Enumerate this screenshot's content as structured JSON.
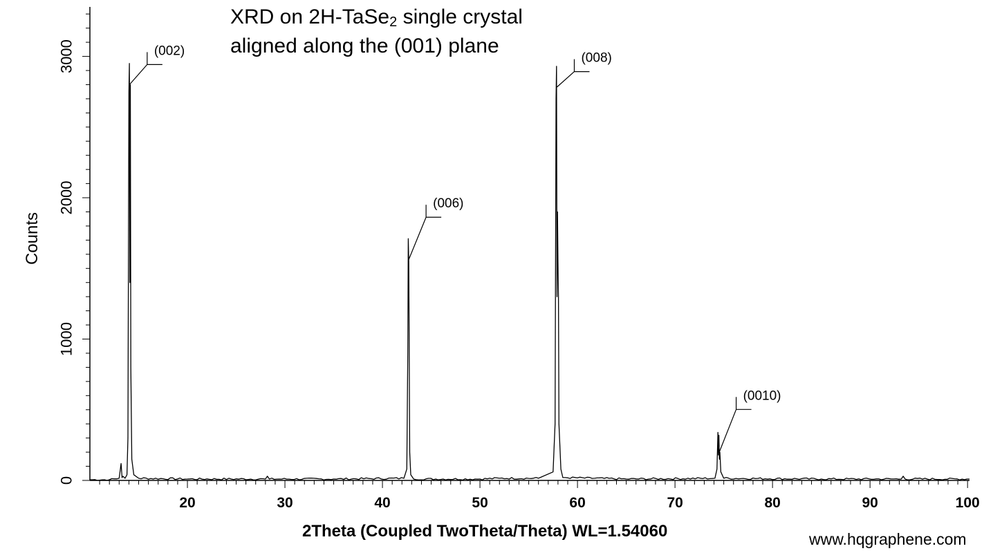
{
  "chart_data": {
    "type": "line",
    "title": {
      "before_sub": "XRD on 2H-TaSe",
      "sub": "2",
      "after_sub": " single crystal"
    },
    "subtitle": "aligned along the (001) plane",
    "xlabel": "2Theta (Coupled TwoTheta/Theta) WL=1.54060",
    "ylabel": "Counts",
    "xlim": [
      10,
      100.2
    ],
    "ylim": [
      0,
      3350
    ],
    "x_ticks": [
      20,
      30,
      40,
      50,
      60,
      70,
      80,
      90,
      100
    ],
    "x_tick_labels": [
      "20",
      "30",
      "40",
      "50",
      "60",
      "70",
      "80",
      "90",
      "100"
    ],
    "y_ticks": [
      0,
      1000,
      2000,
      3000
    ],
    "y_tick_labels": [
      "0",
      "1000",
      "2000",
      "3000"
    ],
    "grid": false,
    "peaks": [
      {
        "label": "(002)",
        "x": 14.1,
        "y": 2950
      },
      {
        "label": "(006)",
        "x": 42.7,
        "y": 1710
      },
      {
        "label": "(008)",
        "x": 57.9,
        "y": 2930
      },
      {
        "label": "(0010)",
        "x": 74.5,
        "y": 340
      }
    ],
    "series": [
      {
        "x": [
          10,
          12,
          13.0,
          13.2,
          13.3,
          13.4,
          13.6,
          13.8,
          13.9,
          14.0,
          14.05,
          14.1,
          14.15,
          14.2,
          14.3,
          14.5,
          15,
          20,
          28.0,
          28.2,
          28.4,
          35,
          42.2,
          42.5,
          42.6,
          42.65,
          42.7,
          42.75,
          42.8,
          42.9,
          43.2,
          50,
          52,
          56,
          57.5,
          57.7,
          57.8,
          57.85,
          57.9,
          57.95,
          58.0,
          58.05,
          58.1,
          58.3,
          58.5,
          65,
          74.1,
          74.3,
          74.4,
          74.45,
          74.5,
          74.55,
          74.6,
          74.7,
          75.0,
          85,
          93.2,
          93.4,
          93.6,
          100.2
        ],
        "y": [
          5,
          5,
          15,
          120,
          20,
          30,
          15,
          40,
          300,
          2750,
          2950,
          1400,
          2800,
          800,
          150,
          40,
          15,
          10,
          10,
          30,
          10,
          10,
          15,
          80,
          900,
          1710,
          1550,
          900,
          200,
          40,
          10,
          10,
          15,
          15,
          60,
          400,
          2700,
          2930,
          1300,
          1900,
          1550,
          1300,
          400,
          80,
          20,
          10,
          15,
          80,
          340,
          180,
          320,
          150,
          200,
          60,
          15,
          10,
          10,
          30,
          10,
          10
        ]
      }
    ]
  },
  "watermark": "www.hqgraphene.com"
}
